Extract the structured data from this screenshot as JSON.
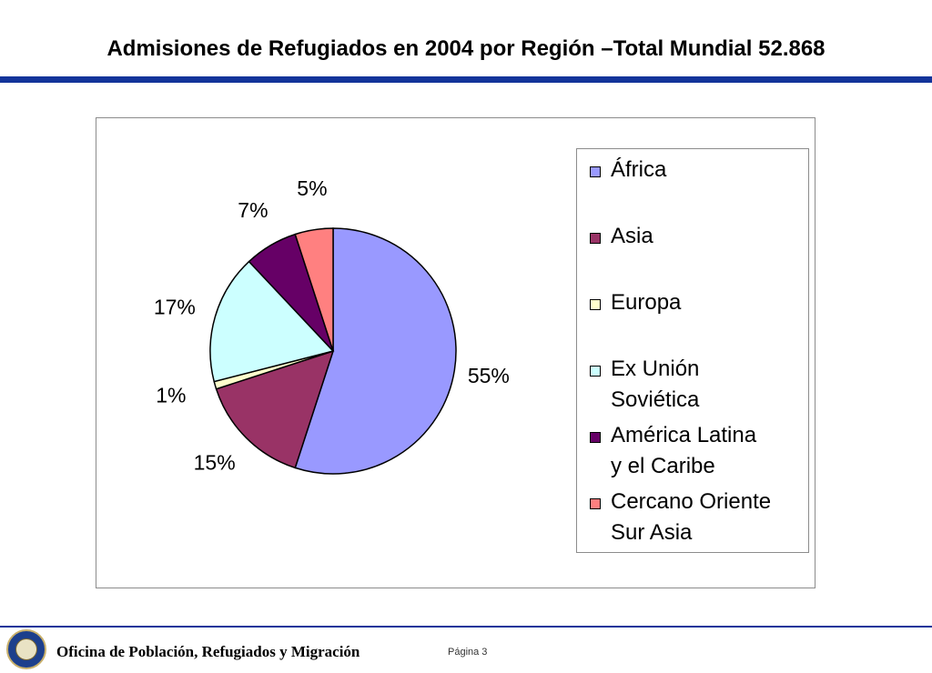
{
  "header": {
    "title": "Admisiones de Refugiados en 2004 por Región –Total Mundial 52.868"
  },
  "chart_data": {
    "type": "pie",
    "title": "",
    "categories": [
      "África",
      "Asia",
      "Europa",
      "Ex Unión Soviética",
      "América Latina y el Caribe",
      "Cercano Oriente Sur Asia"
    ],
    "values": [
      55,
      15,
      1,
      17,
      7,
      5
    ],
    "data_labels": [
      "55%",
      "15%",
      "1%",
      "17%",
      "7%",
      "5%"
    ],
    "colors": [
      "#9999ff",
      "#993366",
      "#ffffcc",
      "#ccffff",
      "#660066",
      "#ff8080"
    ],
    "legend_placement": "right",
    "legend_lines": [
      [
        "África"
      ],
      [
        "Asia"
      ],
      [
        "Europa"
      ],
      [
        "Ex Unión",
        "Soviética"
      ],
      [
        "América Latina",
        "y el Caribe"
      ],
      [
        "Cercano Oriente",
        "Sur Asia"
      ]
    ]
  },
  "footer": {
    "organization": "Oficina de Población, Refugiados y Migración",
    "page_label": "Página  3"
  }
}
